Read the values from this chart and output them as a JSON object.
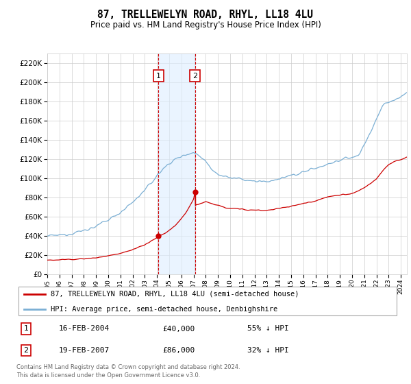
{
  "title": "87, TRELLEWELYN ROAD, RHYL, LL18 4LU",
  "subtitle": "Price paid vs. HM Land Registry's House Price Index (HPI)",
  "ylim": [
    0,
    230000
  ],
  "yticks": [
    0,
    20000,
    40000,
    60000,
    80000,
    100000,
    120000,
    140000,
    160000,
    180000,
    200000,
    220000
  ],
  "sale1_date_num": 2004.12,
  "sale1_price": 40000,
  "sale2_date_num": 2007.12,
  "sale2_price": 86000,
  "sale1_date_str": "16-FEB-2004",
  "sale1_amount": "£40,000",
  "sale1_pct": "55% ↓ HPI",
  "sale2_date_str": "19-FEB-2007",
  "sale2_amount": "£86,000",
  "sale2_pct": "32% ↓ HPI",
  "hpi_color": "#7bafd4",
  "price_color": "#cc0000",
  "shade_color": "#ddeeff",
  "marker_box_color": "#cc0000",
  "legend_line1": "87, TRELLEWELYN ROAD, RHYL, LL18 4LU (semi-detached house)",
  "legend_line2": "HPI: Average price, semi-detached house, Denbighshire",
  "footer1": "Contains HM Land Registry data © Crown copyright and database right 2024.",
  "footer2": "This data is licensed under the Open Government Licence v3.0.",
  "xstart": 1995,
  "xend": 2024.5,
  "hpi_anchors_x": [
    1995,
    1995.5,
    1996,
    1997,
    1998,
    1999,
    2000,
    2001,
    2002,
    2003,
    2003.5,
    2004,
    2004.5,
    2005,
    2005.5,
    2006,
    2006.5,
    2007,
    2007.5,
    2008,
    2008.5,
    2009,
    2009.5,
    2010,
    2010.5,
    2011,
    2011.5,
    2012,
    2013,
    2014,
    2015,
    2016,
    2017,
    2017.5,
    2018,
    2018.5,
    2019,
    2019.5,
    2020,
    2020.5,
    2021,
    2021.5,
    2022,
    2022.5,
    2023,
    2023.5,
    2024,
    2024.5
  ],
  "hpi_anchors_y": [
    40000,
    40500,
    41000,
    43000,
    46000,
    50000,
    57000,
    65000,
    75000,
    88000,
    95000,
    103000,
    110000,
    116000,
    120000,
    123000,
    126000,
    127000,
    124000,
    118000,
    110000,
    105000,
    102000,
    101000,
    100000,
    99000,
    98000,
    97000,
    97000,
    99000,
    103000,
    107000,
    111000,
    113000,
    115000,
    117000,
    119000,
    121000,
    122000,
    124000,
    135000,
    148000,
    162000,
    175000,
    180000,
    182000,
    185000,
    190000
  ],
  "price_anchors_x": [
    1995,
    1995.5,
    1996,
    1997,
    1998,
    1999,
    2000,
    2001,
    2002,
    2003,
    2003.5,
    2004,
    2004.12,
    2004.5,
    2005,
    2005.5,
    2006,
    2006.5,
    2007,
    2007.12,
    2007.13,
    2007.5,
    2008,
    2008.5,
    2009,
    2009.5,
    2010,
    2011,
    2012,
    2013,
    2014,
    2015,
    2016,
    2017,
    2017.5,
    2018,
    2019,
    2020,
    2021,
    2022,
    2022.5,
    2023,
    2023.5,
    2024,
    2024.5
  ],
  "price_anchors_y": [
    15000,
    15200,
    15400,
    15800,
    16500,
    17500,
    19500,
    22000,
    26000,
    31000,
    34500,
    38000,
    40000,
    42000,
    46000,
    51000,
    58000,
    67000,
    78000,
    86000,
    72000,
    74000,
    76000,
    74000,
    72000,
    70000,
    69000,
    68000,
    67000,
    67000,
    69000,
    71000,
    74000,
    77000,
    79000,
    81000,
    83000,
    84000,
    90000,
    100000,
    108000,
    115000,
    118000,
    120000,
    122000
  ]
}
